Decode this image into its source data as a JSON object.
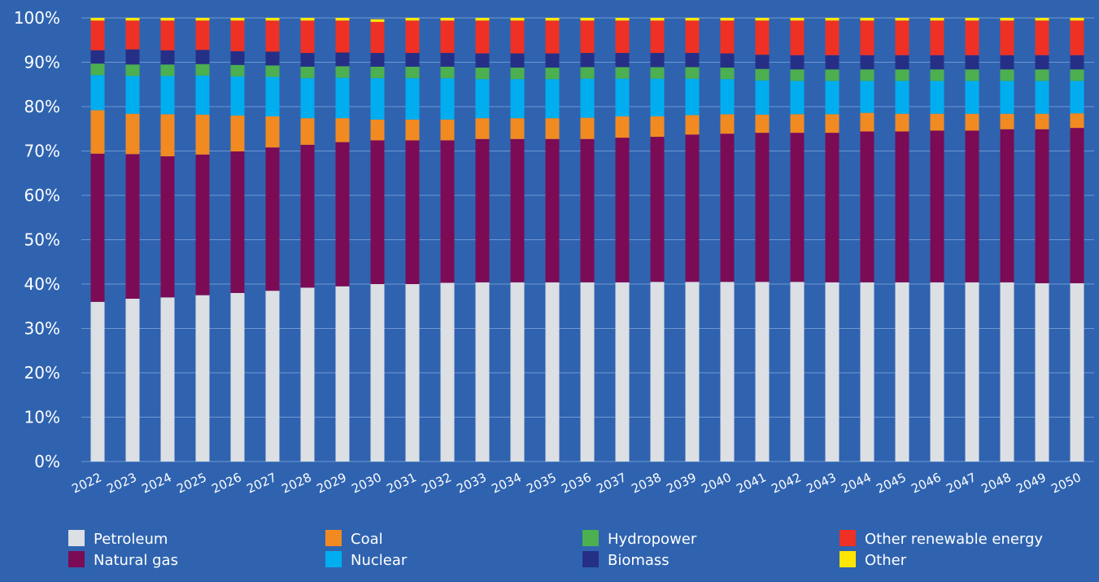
{
  "chart_data": {
    "type": "bar",
    "stacked": true,
    "title": "",
    "xlabel": "",
    "ylabel": "",
    "ylim": [
      0,
      100
    ],
    "ytick_labels": [
      "0%",
      "10%",
      "20%",
      "30%",
      "40%",
      "50%",
      "60%",
      "70%",
      "80%",
      "90%",
      "100%"
    ],
    "grid": "horizontal",
    "legend_position": "bottom",
    "categories": [
      "2022",
      "2023",
      "2024",
      "2025",
      "2026",
      "2027",
      "2028",
      "2029",
      "2030",
      "2031",
      "2032",
      "2033",
      "2034",
      "2035",
      "2036",
      "2037",
      "2038",
      "2039",
      "2040",
      "2041",
      "2042",
      "2043",
      "2044",
      "2045",
      "2046",
      "2047",
      "2048",
      "2049",
      "2050"
    ],
    "series": [
      {
        "name": "Petroleum",
        "color": "#dcdfe3",
        "values": [
          36.0,
          36.7,
          37.0,
          37.5,
          38.0,
          38.5,
          39.2,
          39.5,
          40.0,
          40.0,
          40.3,
          40.4,
          40.4,
          40.4,
          40.4,
          40.4,
          40.5,
          40.5,
          40.5,
          40.5,
          40.5,
          40.4,
          40.4,
          40.4,
          40.4,
          40.4,
          40.4,
          40.2,
          40.2
        ]
      },
      {
        "name": "Natural gas",
        "color": "#7b0b55",
        "values": [
          33.4,
          32.6,
          31.8,
          31.7,
          31.9,
          32.3,
          32.2,
          32.5,
          32.4,
          32.4,
          32.1,
          32.3,
          32.3,
          32.3,
          32.3,
          32.6,
          32.7,
          33.2,
          33.4,
          33.6,
          33.6,
          33.7,
          34.0,
          34.0,
          34.2,
          34.2,
          34.5,
          34.7,
          35.0
        ]
      },
      {
        "name": "Coal",
        "color": "#f28a22",
        "values": [
          9.8,
          9.1,
          9.5,
          9.0,
          8.1,
          7.0,
          6.0,
          5.4,
          4.7,
          4.7,
          4.7,
          4.7,
          4.7,
          4.7,
          4.8,
          4.8,
          4.6,
          4.4,
          4.4,
          4.1,
          4.2,
          4.2,
          4.2,
          4.0,
          3.8,
          3.8,
          3.5,
          3.5,
          3.3
        ]
      },
      {
        "name": "Nuclear",
        "color": "#00aeef",
        "values": [
          7.9,
          8.5,
          8.6,
          8.8,
          8.8,
          8.9,
          9.0,
          9.1,
          9.3,
          9.3,
          9.3,
          8.8,
          8.8,
          8.8,
          8.8,
          8.5,
          8.5,
          8.2,
          7.9,
          7.7,
          7.5,
          7.5,
          7.2,
          7.4,
          7.4,
          7.4,
          7.4,
          7.4,
          7.3
        ]
      },
      {
        "name": "Hydropower",
        "color": "#4caf50",
        "values": [
          2.6,
          2.6,
          2.6,
          2.6,
          2.6,
          2.6,
          2.6,
          2.6,
          2.6,
          2.6,
          2.6,
          2.6,
          2.6,
          2.6,
          2.6,
          2.6,
          2.6,
          2.6,
          2.6,
          2.6,
          2.6,
          2.6,
          2.6,
          2.6,
          2.6,
          2.6,
          2.6,
          2.6,
          2.6
        ]
      },
      {
        "name": "Biomass",
        "color": "#262f86",
        "values": [
          3.0,
          3.4,
          3.2,
          3.2,
          3.1,
          3.1,
          3.1,
          3.1,
          3.1,
          3.1,
          3.1,
          3.2,
          3.2,
          3.2,
          3.2,
          3.2,
          3.2,
          3.2,
          3.2,
          3.2,
          3.2,
          3.2,
          3.2,
          3.2,
          3.2,
          3.2,
          3.2,
          3.2,
          3.2
        ]
      },
      {
        "name": "Other renewable energy",
        "color": "#ee3124",
        "values": [
          6.7,
          6.5,
          6.7,
          6.6,
          6.9,
          7.0,
          7.3,
          7.2,
          7.0,
          7.3,
          7.3,
          7.4,
          7.4,
          7.4,
          7.3,
          7.3,
          7.3,
          7.3,
          7.4,
          7.7,
          7.8,
          7.8,
          7.8,
          7.8,
          7.8,
          7.8,
          7.8,
          7.8,
          7.8
        ]
      },
      {
        "name": "Other",
        "color": "#ffe600",
        "values": [
          0.6,
          0.6,
          0.6,
          0.6,
          0.6,
          0.6,
          0.6,
          0.6,
          0.6,
          0.6,
          0.6,
          0.6,
          0.6,
          0.6,
          0.6,
          0.6,
          0.6,
          0.6,
          0.6,
          0.6,
          0.6,
          0.6,
          0.6,
          0.6,
          0.6,
          0.6,
          0.6,
          0.6,
          0.6
        ]
      }
    ],
    "legend": [
      "Petroleum",
      "Coal",
      "Hydropower",
      "Other renewable energy",
      "Natural gas",
      "Nuclear",
      "Biomass",
      "Other"
    ]
  }
}
